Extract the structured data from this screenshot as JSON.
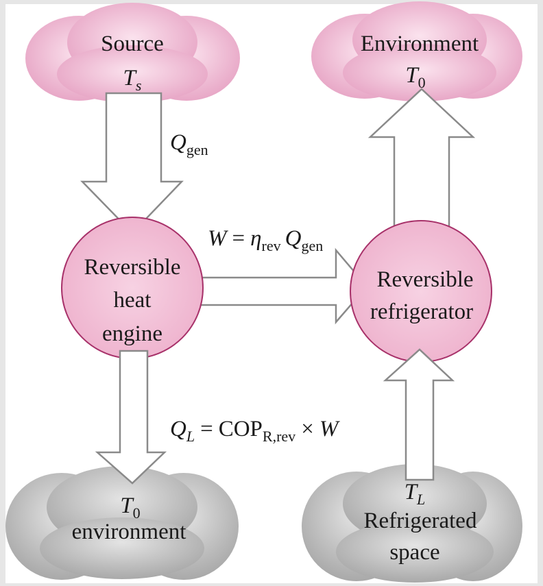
{
  "nodes": [
    {
      "lines": [
        "Source"
      ],
      "symbol": "T",
      "subscript": "s"
    },
    {
      "lines": [
        "Environment"
      ],
      "symbol": "T",
      "subscript": "0"
    },
    {
      "lines": [
        "Reversible",
        "heat",
        "engine"
      ]
    },
    {
      "lines": [
        "Reversible",
        "refrigerator"
      ]
    },
    {
      "symbol": "T",
      "subscript": "0",
      "lines": [
        "environment"
      ]
    },
    {
      "symbol": "T",
      "subscript": "L",
      "lines": [
        "Refrigerated",
        "space"
      ]
    }
  ],
  "labels": {
    "q_gen": [
      "Q",
      "gen"
    ],
    "work": [
      "W",
      "=",
      "η",
      "rev",
      "Q",
      "gen"
    ],
    "q_l": [
      "Q",
      "L",
      "=",
      "COP",
      "R,rev",
      "×",
      "W"
    ]
  }
}
